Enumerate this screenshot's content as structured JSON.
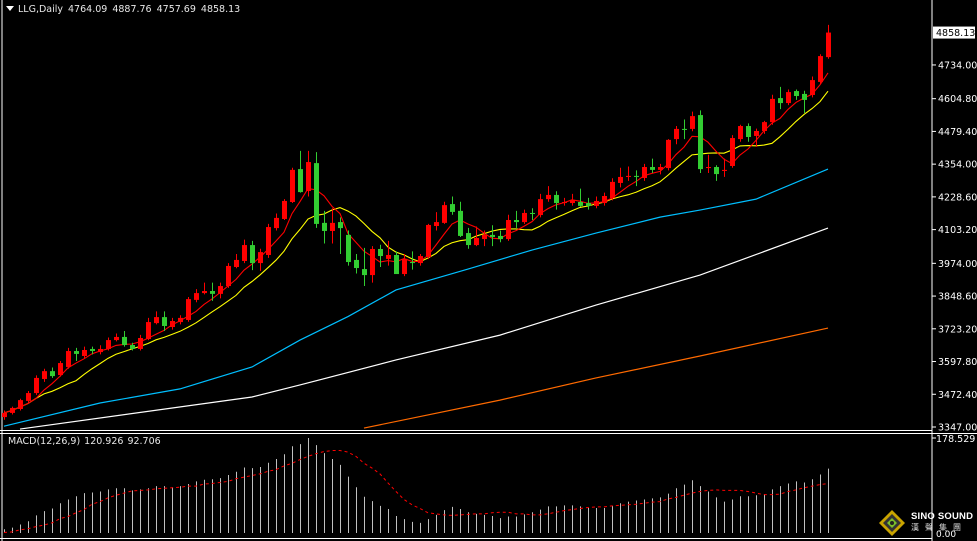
{
  "header": {
    "symbol": "LLG,Daily",
    "open": "4764.09",
    "high": "4887.76",
    "low": "4757.69",
    "close": "4858.13"
  },
  "price_axis": {
    "current_price": "4858.13",
    "ticks": [
      "4734.00",
      "4604.80",
      "4479.40",
      "4354.00",
      "4228.60",
      "4103.20",
      "3974.00",
      "3848.60",
      "3723.20",
      "3597.80",
      "3472.40",
      "3347.00"
    ]
  },
  "macd_panel": {
    "label": "MACD(12,26,9)",
    "macd_value": "120.926",
    "signal_value": "92.706",
    "axis_ticks": [
      "178.529",
      "0.00"
    ]
  },
  "watermark": {
    "brand": "SINO SOUND",
    "chinese": "漢聲集團"
  },
  "colors": {
    "background": "#000000",
    "up_candle": "#ff0000",
    "down_candle": "#32cd32",
    "ma_fast": "#ff0000",
    "ma_slow": "#ffff00",
    "ma_blue": "#00bfff",
    "ma_white": "#ffffff",
    "ma_orange": "#ff6a00",
    "macd_histogram": "#c0c0c0",
    "macd_signal": "#ff0000"
  },
  "chart_data": [
    {
      "type": "candlestick",
      "title": "LLG,Daily",
      "ylim": [
        3347.0,
        4890.0
      ],
      "y_ticks": [
        3347.0,
        3472.4,
        3597.8,
        3723.2,
        3848.6,
        3974.0,
        4103.2,
        4228.6,
        4354.0,
        4479.4,
        4604.8,
        4734.0
      ],
      "ohlc": [
        [
          3385,
          3410,
          3375,
          3401
        ],
        [
          3401,
          3425,
          3395,
          3420
        ],
        [
          3416,
          3455,
          3410,
          3450
        ],
        [
          3447,
          3485,
          3440,
          3477
        ],
        [
          3477,
          3545,
          3470,
          3535
        ],
        [
          3531,
          3570,
          3520,
          3561
        ],
        [
          3561,
          3575,
          3535,
          3542
        ],
        [
          3546,
          3600,
          3540,
          3592
        ],
        [
          3577,
          3650,
          3570,
          3638
        ],
        [
          3638,
          3650,
          3600,
          3627
        ],
        [
          3619,
          3655,
          3610,
          3642
        ],
        [
          3646,
          3655,
          3625,
          3638
        ],
        [
          3634,
          3660,
          3625,
          3646
        ],
        [
          3646,
          3690,
          3640,
          3680
        ],
        [
          3680,
          3705,
          3675,
          3692
        ],
        [
          3692,
          3715,
          3655,
          3661
        ],
        [
          3661,
          3670,
          3640,
          3646
        ],
        [
          3646,
          3700,
          3640,
          3688
        ],
        [
          3684,
          3765,
          3680,
          3749
        ],
        [
          3745,
          3790,
          3740,
          3768
        ],
        [
          3768,
          3790,
          3715,
          3734
        ],
        [
          3730,
          3765,
          3720,
          3753
        ],
        [
          3749,
          3775,
          3740,
          3765
        ],
        [
          3757,
          3845,
          3750,
          3837
        ],
        [
          3834,
          3875,
          3825,
          3860
        ],
        [
          3860,
          3900,
          3855,
          3868
        ],
        [
          3868,
          3900,
          3830,
          3857
        ],
        [
          3857,
          3900,
          3840,
          3887
        ],
        [
          3887,
          3975,
          3880,
          3964
        ],
        [
          3960,
          4010,
          3955,
          3987
        ],
        [
          3983,
          4065,
          3975,
          4044
        ],
        [
          4044,
          4060,
          3948,
          3975
        ],
        [
          3975,
          4030,
          3945,
          4017
        ],
        [
          4006,
          4125,
          3995,
          4113
        ],
        [
          4109,
          4165,
          4100,
          4148
        ],
        [
          4144,
          4220,
          4140,
          4213
        ],
        [
          4209,
          4340,
          4205,
          4332
        ],
        [
          4335,
          4405,
          4245,
          4247
        ],
        [
          4251,
          4405,
          4230,
          4362
        ],
        [
          4358,
          4400,
          4110,
          4125
        ],
        [
          4129,
          4175,
          4050,
          4098
        ],
        [
          4098,
          4185,
          4050,
          4129
        ],
        [
          4132,
          4150,
          4010,
          4109
        ],
        [
          4083,
          4100,
          3965,
          3979
        ],
        [
          3987,
          4010,
          3935,
          3956
        ],
        [
          3952,
          4033,
          3887,
          3929
        ],
        [
          3929,
          4040,
          3900,
          4029
        ],
        [
          4029,
          4045,
          3960,
          4002
        ],
        [
          3991,
          4060,
          3965,
          4006
        ],
        [
          4006,
          4020,
          3945,
          3933
        ],
        [
          3933,
          4010,
          3925,
          3991
        ],
        [
          3979,
          4020,
          3950,
          3975
        ],
        [
          3975,
          4010,
          3965,
          4002
        ],
        [
          3998,
          4125,
          3990,
          4121
        ],
        [
          4117,
          4170,
          4100,
          4132
        ],
        [
          4129,
          4210,
          4125,
          4197
        ],
        [
          4201,
          4230,
          4160,
          4171
        ],
        [
          4175,
          4210,
          4075,
          4079
        ],
        [
          4090,
          4110,
          4030,
          4044
        ],
        [
          4044,
          4115,
          4040,
          4071
        ],
        [
          4067,
          4100,
          4040,
          4083
        ],
        [
          4083,
          4120,
          4040,
          4075
        ],
        [
          4079,
          4100,
          4055,
          4067
        ],
        [
          4067,
          4160,
          4060,
          4140
        ],
        [
          4140,
          4175,
          4110,
          4132
        ],
        [
          4132,
          4180,
          4125,
          4167
        ],
        [
          4167,
          4185,
          4140,
          4163
        ],
        [
          4159,
          4240,
          4150,
          4220
        ],
        [
          4220,
          4270,
          4210,
          4236
        ],
        [
          4236,
          4250,
          4180,
          4205
        ],
        [
          4205,
          4225,
          4195,
          4209
        ],
        [
          4205,
          4240,
          4195,
          4217
        ],
        [
          4209,
          4260,
          4190,
          4194
        ],
        [
          4205,
          4225,
          4180,
          4194
        ],
        [
          4194,
          4230,
          4185,
          4213
        ],
        [
          4205,
          4245,
          4195,
          4232
        ],
        [
          4224,
          4300,
          4215,
          4286
        ],
        [
          4282,
          4340,
          4265,
          4305
        ],
        [
          4305,
          4345,
          4290,
          4309
        ],
        [
          4309,
          4330,
          4270,
          4305
        ],
        [
          4301,
          4355,
          4290,
          4343
        ],
        [
          4343,
          4375,
          4320,
          4332
        ],
        [
          4332,
          4355,
          4315,
          4343
        ],
        [
          4339,
          4450,
          4330,
          4447
        ],
        [
          4450,
          4500,
          4430,
          4489
        ],
        [
          4489,
          4525,
          4450,
          4485
        ],
        [
          4489,
          4555,
          4480,
          4538
        ],
        [
          4542,
          4560,
          4320,
          4335
        ],
        [
          4339,
          4390,
          4320,
          4343
        ],
        [
          4343,
          4350,
          4290,
          4316
        ],
        [
          4328,
          4375,
          4305,
          4332
        ],
        [
          4347,
          4465,
          4340,
          4454
        ],
        [
          4450,
          4505,
          4440,
          4500
        ],
        [
          4500,
          4510,
          4440,
          4458
        ],
        [
          4462,
          4490,
          4420,
          4481
        ],
        [
          4481,
          4520,
          4470,
          4515
        ],
        [
          4515,
          4620,
          4505,
          4604
        ],
        [
          4607,
          4650,
          4565,
          4588
        ],
        [
          4588,
          4640,
          4580,
          4630
        ],
        [
          4634,
          4640,
          4600,
          4615
        ],
        [
          4623,
          4635,
          4550,
          4600
        ],
        [
          4619,
          4690,
          4610,
          4676
        ],
        [
          4669,
          4775,
          4660,
          4768
        ],
        [
          4764.09,
          4887.76,
          4757.69,
          4858.13
        ]
      ],
      "moving_averages": [
        {
          "color": "#00bfff",
          "points": [
            [
              0,
              3350
            ],
            [
              12,
              3439
            ],
            [
              22,
              3493
            ],
            [
              31,
              3577
            ],
            [
              37,
              3680
            ],
            [
              43,
              3770
            ],
            [
              49,
              3872
            ],
            [
              58,
              3952
            ],
            [
              66,
              4025
            ],
            [
              74,
              4090
            ],
            [
              82,
              4151
            ],
            [
              87,
              4178
            ],
            [
              94,
              4220
            ],
            [
              103,
              4335
            ]
          ]
        },
        {
          "color": "#ffffff",
          "points": [
            [
              2,
              3339
            ],
            [
              31,
              3462
            ],
            [
              37,
              3508
            ],
            [
              49,
              3604
            ],
            [
              62,
              3699
            ],
            [
              74,
              3814
            ],
            [
              87,
              3929
            ],
            [
              103,
              4109
            ]
          ]
        },
        {
          "color": "#ff6a00",
          "points": [
            [
              45,
              3343
            ],
            [
              62,
              3450
            ],
            [
              74,
              3535
            ],
            [
              87,
              3619
            ],
            [
              103,
              3726
            ]
          ]
        }
      ]
    },
    {
      "type": "bar",
      "title": "MACD(12,26,9)",
      "ylim": [
        0,
        178.529
      ],
      "histogram": [
        7,
        10,
        16,
        22,
        33,
        41,
        46,
        56,
        63,
        69,
        75,
        76,
        78,
        82,
        84,
        84,
        80,
        82,
        84,
        88,
        88,
        86,
        88,
        92,
        97,
        100,
        101,
        103,
        109,
        115,
        123,
        122,
        124,
        132,
        139,
        148,
        163,
        167,
        178.5,
        165,
        150,
        139,
        128,
        106,
        86,
        68,
        60,
        51,
        45,
        32,
        26,
        21,
        19,
        26,
        34,
        43,
        49,
        45,
        39,
        36,
        34,
        32,
        28,
        31,
        31,
        35,
        39,
        44,
        50,
        50,
        52,
        52,
        50,
        47,
        47,
        47,
        51,
        56,
        59,
        61,
        63,
        65,
        67,
        74,
        84,
        91,
        99,
        88,
        78,
        67,
        59,
        63,
        69,
        69,
        71,
        73,
        82,
        88,
        93,
        97,
        95,
        101,
        110,
        120.926
      ],
      "signal": [
        1,
        2,
        6,
        8,
        12,
        15,
        19,
        27,
        31,
        38,
        44,
        54,
        59,
        66,
        71,
        75,
        79,
        80,
        81,
        83,
        84,
        85,
        86,
        88,
        88,
        92,
        93,
        95,
        97,
        102,
        105,
        108,
        111,
        116,
        119,
        126,
        131,
        138,
        144,
        149,
        153,
        155,
        155,
        152,
        144,
        131,
        122,
        111,
        94,
        78,
        63,
        53,
        46,
        38,
        36,
        34,
        33,
        34,
        35,
        36,
        36,
        38,
        39,
        39,
        36,
        36,
        34,
        34,
        36,
        39,
        42,
        44,
        46,
        48,
        49,
        49,
        51,
        52,
        53,
        54,
        56,
        58,
        59,
        64,
        67,
        71,
        75,
        78,
        80,
        81,
        80,
        80,
        80,
        78,
        75,
        72,
        72,
        73,
        78,
        81,
        85,
        88,
        91,
        92.706
      ]
    }
  ]
}
